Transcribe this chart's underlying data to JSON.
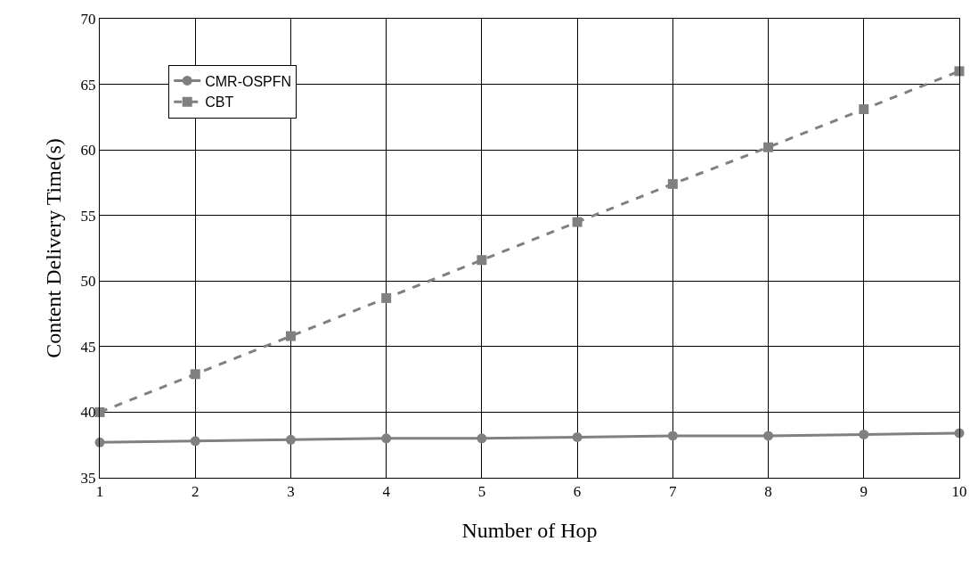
{
  "chart_data": {
    "type": "line",
    "xlabel": "Number of Hop",
    "ylabel": "Content Delivery Time(s)",
    "x": [
      1,
      2,
      3,
      4,
      5,
      6,
      7,
      8,
      9,
      10
    ],
    "series": [
      {
        "name": "CMR-OSPFN",
        "color": "#808080",
        "marker": "circle",
        "line_style": "solid",
        "values": [
          37.7,
          37.8,
          37.9,
          38.0,
          38.0,
          38.1,
          38.2,
          38.2,
          38.3,
          38.4
        ]
      },
      {
        "name": "CBT",
        "color": "#808080",
        "marker": "square",
        "line_style": "dashed",
        "values": [
          40.0,
          42.9,
          45.8,
          48.7,
          51.6,
          54.5,
          57.4,
          60.2,
          63.1,
          66.0
        ]
      }
    ],
    "xlim": [
      1,
      10
    ],
    "xticks": [
      1,
      2,
      3,
      4,
      5,
      6,
      7,
      8,
      9,
      10
    ],
    "ylim": [
      35,
      70
    ],
    "yticks": [
      35,
      40,
      45,
      50,
      55,
      60,
      65,
      70
    ],
    "grid": true,
    "legend": "top left"
  }
}
